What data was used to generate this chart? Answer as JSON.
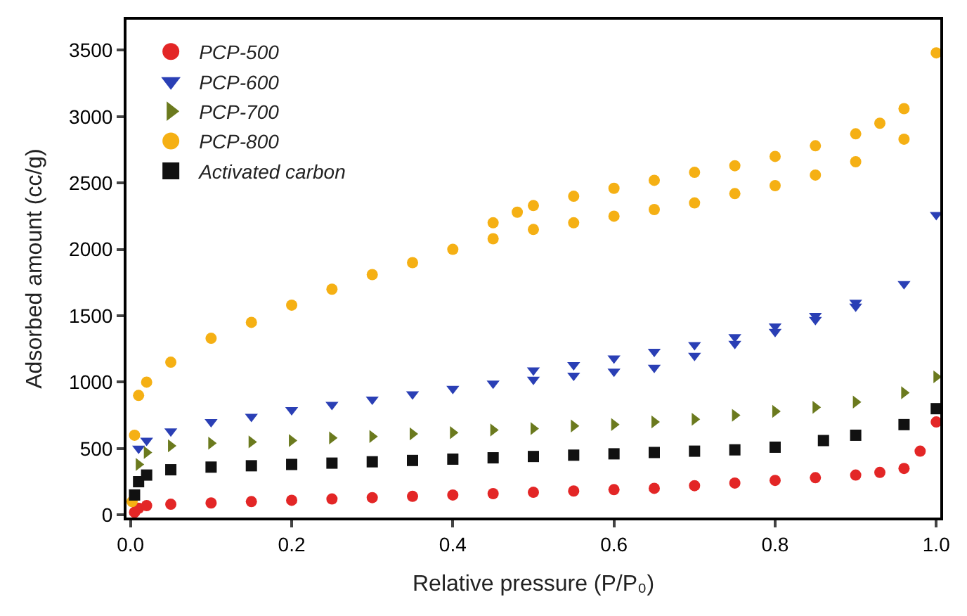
{
  "chart_data": {
    "type": "scatter",
    "xlabel": "Relative pressure (P/P₀)",
    "ylabel": "Adsorbed amount (cc/g)",
    "xlim": [
      -0.005,
      1.005
    ],
    "ylim": [
      -20,
      3730
    ],
    "xticks": [
      {
        "value": 0,
        "label": "0.0"
      },
      0.2,
      0.4,
      0.6,
      0.8,
      {
        "value": 1,
        "label": "1.0"
      }
    ],
    "yticks": [
      0,
      500,
      1000,
      1500,
      2000,
      2500,
      3000,
      3500
    ],
    "legend": "top left",
    "series": [
      {
        "name": "PCP-500",
        "color": "#e32626",
        "marker": "circle",
        "x": [
          0.005,
          0.01,
          0.02,
          0.05,
          0.1,
          0.15,
          0.2,
          0.25,
          0.3,
          0.35,
          0.4,
          0.45,
          0.5,
          0.55,
          0.6,
          0.65,
          0.7,
          0.75,
          0.8,
          0.85,
          0.9,
          0.93,
          0.96,
          0.98,
          1.0
        ],
        "values": [
          20,
          50,
          70,
          80,
          90,
          100,
          110,
          120,
          130,
          140,
          150,
          160,
          170,
          180,
          190,
          200,
          220,
          240,
          260,
          280,
          300,
          320,
          350,
          480,
          700
        ]
      },
      {
        "name": "PCP-600",
        "color": "#2a3fb5",
        "marker": "triangle-down",
        "x": [
          0.01,
          0.02,
          0.05,
          0.1,
          0.15,
          0.2,
          0.25,
          0.3,
          0.35,
          0.4,
          0.45,
          0.5,
          0.55,
          0.6,
          0.65,
          0.7,
          0.75,
          0.8,
          0.85,
          0.9,
          0.96,
          0.9,
          0.85,
          0.8,
          0.75,
          0.7,
          0.65,
          0.6,
          0.55,
          0.5,
          1.0
        ],
        "values": [
          500,
          560,
          630,
          700,
          740,
          790,
          830,
          870,
          910,
          950,
          990,
          1020,
          1050,
          1080,
          1110,
          1200,
          1290,
          1380,
          1470,
          1570,
          1740,
          1600,
          1500,
          1420,
          1340,
          1280,
          1230,
          1180,
          1130,
          1090,
          2260
        ]
      },
      {
        "name": "PCP-700",
        "color": "#6b7a1e",
        "marker": "triangle-right",
        "x": [
          0.01,
          0.02,
          0.05,
          0.1,
          0.15,
          0.2,
          0.25,
          0.3,
          0.35,
          0.4,
          0.45,
          0.5,
          0.55,
          0.6,
          0.65,
          0.7,
          0.75,
          0.8,
          0.85,
          0.9,
          0.96,
          1.0
        ],
        "values": [
          380,
          470,
          520,
          540,
          550,
          560,
          580,
          590,
          610,
          620,
          640,
          650,
          670,
          680,
          700,
          720,
          750,
          780,
          810,
          850,
          920,
          1040
        ]
      },
      {
        "name": "PCP-800",
        "color": "#f5b014",
        "marker": "circle",
        "x": [
          0.002,
          0.005,
          0.01,
          0.02,
          0.05,
          0.1,
          0.15,
          0.2,
          0.25,
          0.3,
          0.35,
          0.4,
          0.45,
          0.5,
          0.55,
          0.6,
          0.65,
          0.7,
          0.75,
          0.8,
          0.85,
          0.9,
          0.96,
          0.96,
          0.93,
          0.9,
          0.85,
          0.8,
          0.75,
          0.7,
          0.65,
          0.6,
          0.55,
          0.5,
          0.48,
          0.45,
          1.0
        ],
        "values": [
          100,
          600,
          900,
          1000,
          1150,
          1330,
          1450,
          1580,
          1700,
          1810,
          1900,
          2000,
          2080,
          2150,
          2200,
          2250,
          2300,
          2350,
          2420,
          2480,
          2560,
          2660,
          2830,
          3060,
          2950,
          2870,
          2780,
          2700,
          2630,
          2580,
          2520,
          2460,
          2400,
          2330,
          2280,
          2200,
          3480
        ]
      },
      {
        "name": "Activated carbon",
        "color": "#111111",
        "marker": "square",
        "x": [
          0.005,
          0.01,
          0.02,
          0.05,
          0.1,
          0.15,
          0.2,
          0.25,
          0.3,
          0.35,
          0.4,
          0.45,
          0.5,
          0.55,
          0.6,
          0.65,
          0.7,
          0.75,
          0.8,
          0.86,
          0.9,
          0.96,
          1.0
        ],
        "values": [
          150,
          250,
          300,
          340,
          360,
          370,
          380,
          390,
          400,
          410,
          420,
          430,
          440,
          450,
          460,
          470,
          480,
          490,
          510,
          560,
          600,
          680,
          800
        ]
      }
    ]
  }
}
